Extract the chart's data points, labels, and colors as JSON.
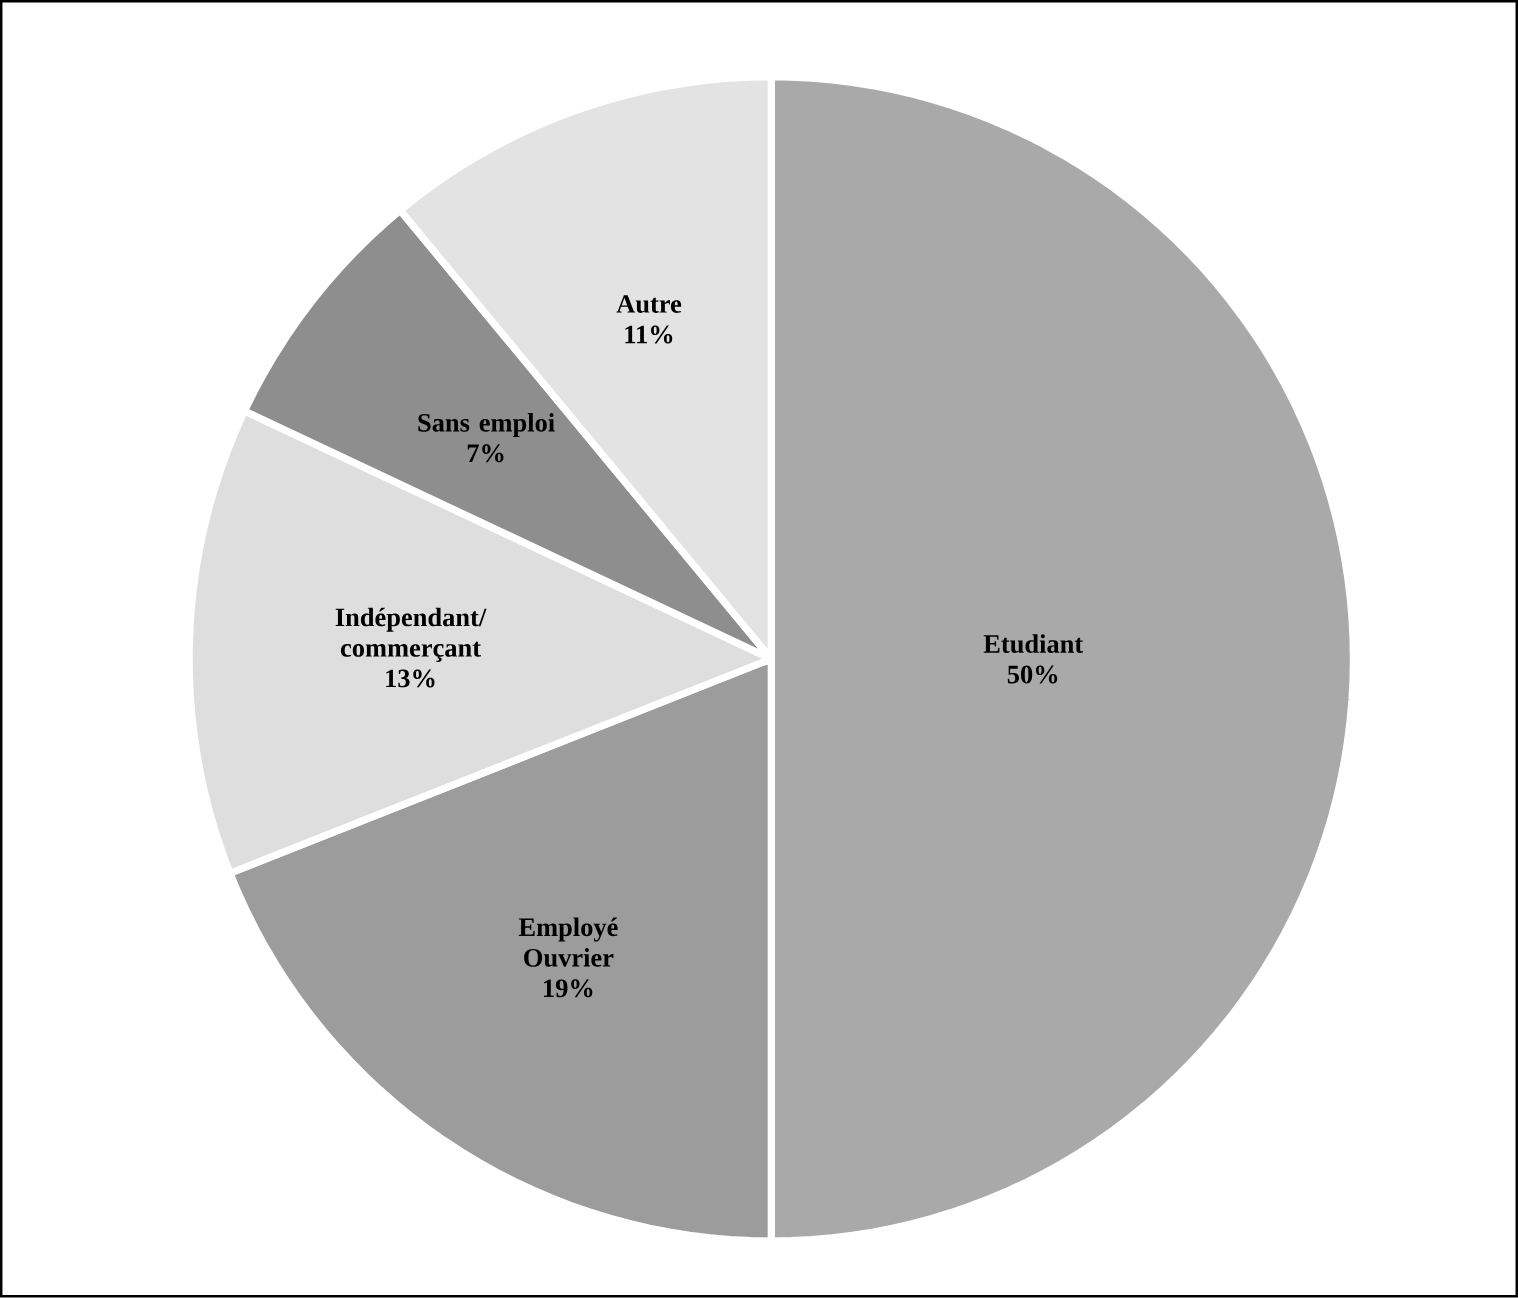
{
  "chart_data": {
    "type": "pie",
    "categories": [
      "Etudiant",
      "Employé Ouvrier",
      "Indépendant/ commerçant",
      "Sans emploi",
      "Autre"
    ],
    "values": [
      50,
      19,
      13,
      7,
      11
    ],
    "value_labels": [
      "50%",
      "19%",
      "13%",
      "7%",
      "11%"
    ],
    "colors": [
      "#a9a9a9",
      "#9c9c9c",
      "#dedede",
      "#8e8e8e",
      "#e3e3e3"
    ]
  }
}
